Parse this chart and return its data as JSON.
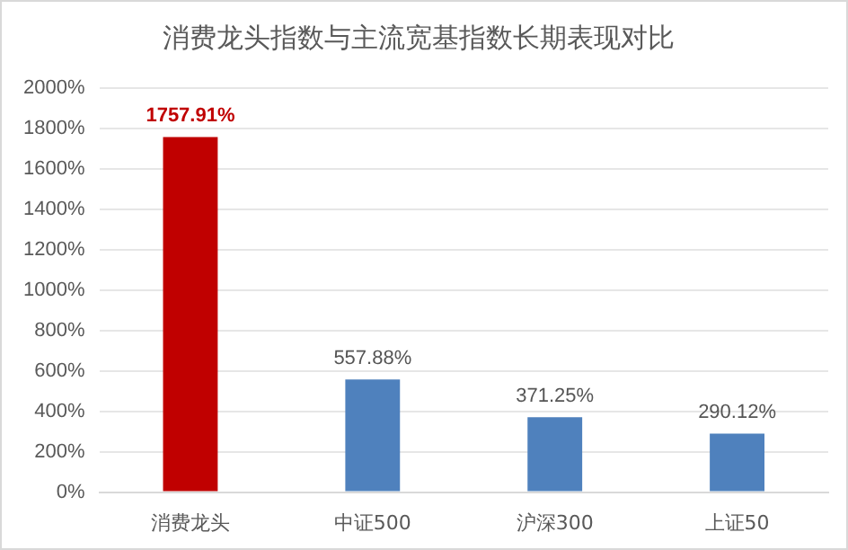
{
  "chart_data": {
    "type": "bar",
    "title": "消费龙头指数与主流宽基指数长期表现对比",
    "categories": [
      "消费龙头",
      "中证500",
      "沪深300",
      "上证50"
    ],
    "values": [
      1757.91,
      557.88,
      371.25,
      290.12
    ],
    "colors": [
      "#c00000",
      "#4f81bd",
      "#4f81bd",
      "#4f81bd"
    ],
    "value_labels": [
      "1757.91%",
      "557.88%",
      "371.25%",
      "290.12%"
    ],
    "ylim": [
      0,
      2000
    ],
    "yticks": [
      {
        "value": 0,
        "label": "0%"
      },
      {
        "value": 200,
        "label": "200%"
      },
      {
        "value": 400,
        "label": "400%"
      },
      {
        "value": 600,
        "label": "600%"
      },
      {
        "value": 800,
        "label": "800%"
      },
      {
        "value": 1000,
        "label": "1000%"
      },
      {
        "value": 1200,
        "label": "1200%"
      },
      {
        "value": 1400,
        "label": "1400%"
      },
      {
        "value": 1600,
        "label": "1600%"
      },
      {
        "value": 1800,
        "label": "1800%"
      },
      {
        "value": 2000,
        "label": "2000%"
      }
    ],
    "grid": "y",
    "legend": false
  }
}
